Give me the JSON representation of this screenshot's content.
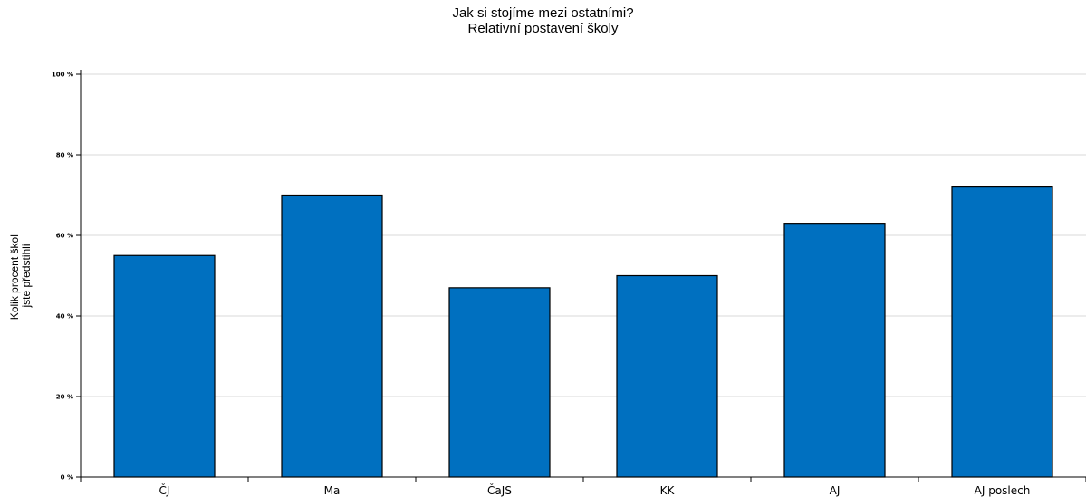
{
  "chart_data": {
    "type": "bar",
    "title": "Jak si stojíme mezi ostatními?",
    "subtitle": "Relativní postavení školy",
    "ylabel_lines": [
      "Kolik procent škol",
      "jste předstihli"
    ],
    "xlabel": "",
    "categories": [
      "ČJ",
      "Ma",
      "ČaJS",
      "KK",
      "AJ",
      "AJ poslech"
    ],
    "values": [
      55,
      70,
      47,
      50,
      63,
      72
    ],
    "ylim": [
      0,
      100
    ],
    "yticks": [
      0,
      20,
      40,
      60,
      80,
      100
    ],
    "ytick_labels": [
      "0 %",
      "20 %",
      "40 %",
      "60 %",
      "80 %",
      "100 %"
    ],
    "grid": true,
    "bar_color": "#0070c0",
    "grid_color": "#d9d9d9",
    "legend": "none"
  }
}
